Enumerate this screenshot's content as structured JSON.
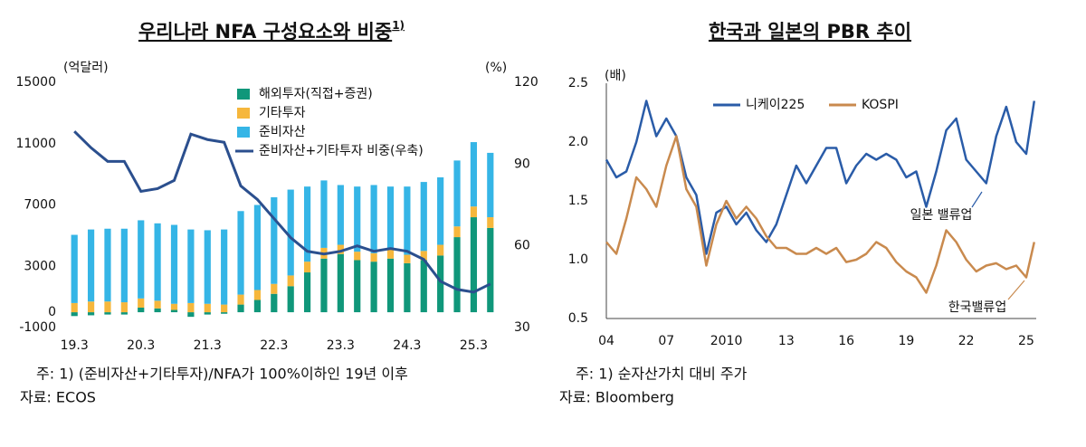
{
  "chart_data": [
    {
      "type": "bar",
      "title": "우리나라 NFA 구성요소와 비중",
      "title_note": "1)",
      "y_label": "(억달러)",
      "y2_label": "(%)",
      "categories": [
        "19.3",
        null,
        null,
        null,
        "20.3",
        null,
        null,
        null,
        "21.3",
        null,
        null,
        null,
        "22.3",
        null,
        null,
        null,
        "23.3",
        null,
        null,
        null,
        "24.3",
        null,
        null,
        null,
        "25.3",
        null
      ],
      "stacked": true,
      "series": [
        {
          "name": "해외투자(직접+증권)",
          "color": "#10977a",
          "values": [
            -250,
            -200,
            -150,
            -150,
            300,
            250,
            150,
            -300,
            -150,
            -100,
            500,
            800,
            1200,
            1700,
            2600,
            3500,
            3800,
            3400,
            3300,
            3500,
            3200,
            3400,
            3700,
            4900,
            6200,
            5500
          ]
        },
        {
          "name": "기타투자",
          "color": "#f6b73c",
          "values": [
            600,
            700,
            700,
            650,
            600,
            500,
            400,
            600,
            550,
            500,
            650,
            650,
            650,
            700,
            700,
            700,
            600,
            550,
            550,
            600,
            550,
            600,
            700,
            700,
            700,
            700
          ]
        },
        {
          "name": "준비자산",
          "color": "#35b5e6",
          "values": [
            4450,
            4700,
            4750,
            4800,
            5100,
            5050,
            5150,
            4800,
            4800,
            4900,
            5450,
            5550,
            5650,
            5600,
            4900,
            4400,
            3900,
            4250,
            4450,
            4100,
            4450,
            4500,
            4400,
            4300,
            4200,
            4200
          ]
        },
        {
          "name": "준비자산+기타투자 비중(우축)",
          "color": "#2b4f8e",
          "type": "line",
          "axis": "y2",
          "values": [
            102,
            96,
            91,
            91,
            80,
            81,
            84,
            101,
            99,
            98,
            82,
            77,
            70,
            63,
            58,
            57,
            58,
            60,
            58,
            59,
            58,
            55,
            47,
            44,
            43,
            46
          ]
        }
      ],
      "ylim": [
        -1000,
        15000
      ],
      "yticks": [
        -1000,
        0,
        3000,
        7000,
        11000,
        15000
      ],
      "y2lim": [
        30,
        120
      ],
      "y2ticks": [
        30,
        60,
        90,
        120
      ],
      "note": "주: 1) (준비자산+기타투자)/NFA가 100%이하인 19년 이후",
      "source": "자료: ECOS"
    },
    {
      "type": "line",
      "title": "한국과 일본의 PBR 추이",
      "y_label": "(배)",
      "x": [
        2004,
        2004.5,
        2005,
        2005.5,
        2006,
        2006.5,
        2007,
        2007.5,
        2008,
        2008.5,
        2009,
        2009.5,
        2010,
        2010.5,
        2011,
        2011.5,
        2012,
        2012.5,
        2013,
        2013.5,
        2014,
        2014.5,
        2015,
        2015.5,
        2016,
        2016.5,
        2017,
        2017.5,
        2018,
        2018.5,
        2019,
        2019.5,
        2020,
        2020.5,
        2021,
        2021.5,
        2022,
        2022.5,
        2023,
        2023.5,
        2024,
        2024.5,
        2025,
        2025.4
      ],
      "series": [
        {
          "name": "니케이225",
          "color": "#2a5ca8",
          "values": [
            1.85,
            1.7,
            1.75,
            2.0,
            2.35,
            2.05,
            2.2,
            2.05,
            1.7,
            1.55,
            1.05,
            1.4,
            1.45,
            1.3,
            1.4,
            1.25,
            1.15,
            1.3,
            1.55,
            1.8,
            1.65,
            1.8,
            1.95,
            1.95,
            1.65,
            1.8,
            1.9,
            1.85,
            1.9,
            1.85,
            1.7,
            1.75,
            1.45,
            1.75,
            2.1,
            2.2,
            1.85,
            1.75,
            1.65,
            2.05,
            2.3,
            2.0,
            1.9,
            2.35
          ]
        },
        {
          "name": "KOSPI",
          "color": "#c98a4e",
          "values": [
            1.15,
            1.05,
            1.35,
            1.7,
            1.6,
            1.45,
            1.8,
            2.05,
            1.6,
            1.45,
            0.95,
            1.3,
            1.5,
            1.35,
            1.45,
            1.35,
            1.2,
            1.1,
            1.1,
            1.05,
            1.05,
            1.1,
            1.05,
            1.1,
            0.98,
            1.0,
            1.05,
            1.15,
            1.1,
            0.98,
            0.9,
            0.85,
            0.72,
            0.95,
            1.25,
            1.15,
            1.0,
            0.9,
            0.95,
            0.97,
            0.92,
            0.95,
            0.85,
            1.15
          ]
        }
      ],
      "annotations": [
        "일본 밸류업",
        "한국밸류업"
      ],
      "xlim": [
        2004,
        2025.5
      ],
      "xticks": [
        {
          "value": 2004,
          "label": "04"
        },
        {
          "value": 2007,
          "label": "07"
        },
        2010,
        13,
        16,
        19,
        22,
        25
      ],
      "ylim": [
        0.5,
        2.5
      ],
      "yticks": [
        0.5,
        {
          "value": 1.0,
          "label": "1.0"
        },
        1.5,
        {
          "value": 2.0,
          "label": "2.0"
        },
        2.5
      ],
      "note": "주: 1) 순자산가치 대비 주가",
      "source": "자료: Bloomberg"
    }
  ]
}
